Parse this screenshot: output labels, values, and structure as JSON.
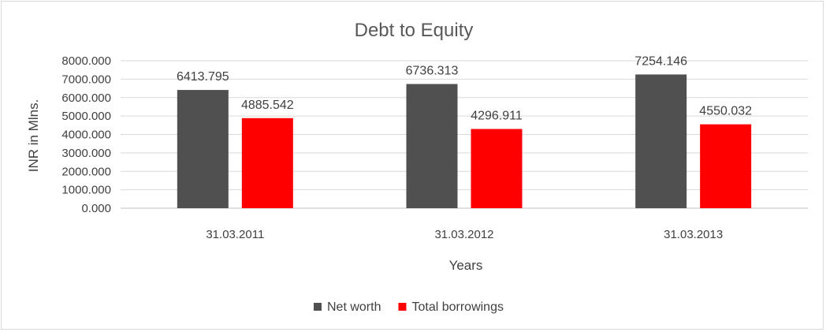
{
  "chart_data": {
    "type": "bar",
    "title": "Debt to Equity",
    "xlabel": "Years",
    "ylabel": "INR in Mlns.",
    "categories": [
      "31.03.2011",
      "31.03.2012",
      "31.03.2013"
    ],
    "series": [
      {
        "name": "Net worth",
        "color": "#505050",
        "values": [
          6413.795,
          6736.313,
          7254.146
        ]
      },
      {
        "name": "Total borrowings",
        "color": "#ff0000",
        "values": [
          4885.542,
          4296.911,
          4550.032
        ]
      }
    ],
    "ylim": [
      0,
      8000
    ],
    "yticks": [
      "0.000",
      "1000.000",
      "2000.000",
      "3000.000",
      "4000.000",
      "5000.000",
      "6000.000",
      "7000.000",
      "8000.000"
    ],
    "data_labels": [
      [
        "6413.795",
        "6736.313",
        "7254.146"
      ],
      [
        "4885.542",
        "4296.911",
        "4550.032"
      ]
    ],
    "grid": true,
    "legend": "bottom"
  }
}
